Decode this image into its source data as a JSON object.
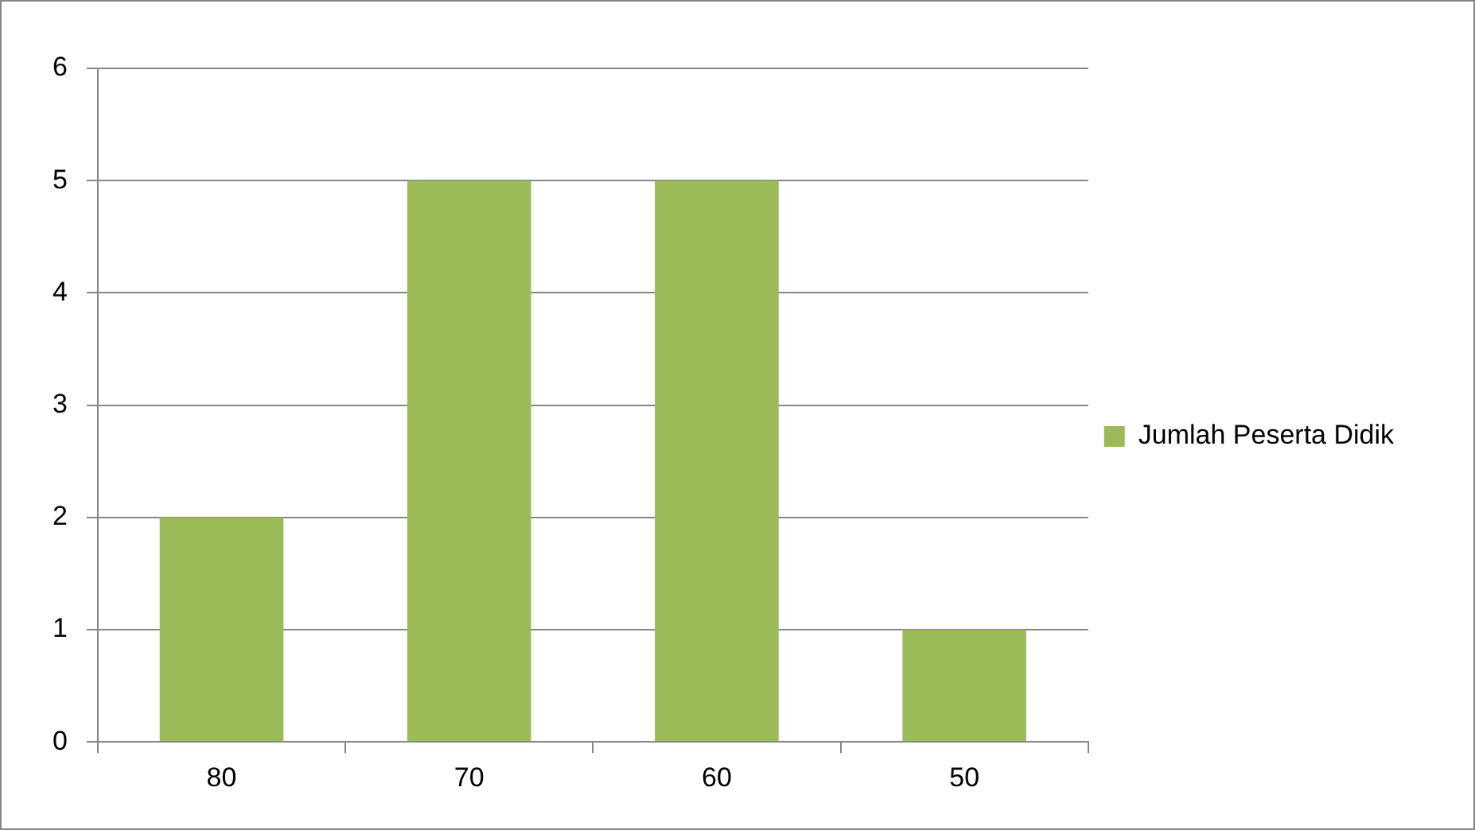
{
  "chart_data": {
    "type": "bar",
    "categories": [
      "80",
      "70",
      "60",
      "50"
    ],
    "series": [
      {
        "name": "Jumlah Peserta Didik",
        "color": "#9bbb59",
        "values": [
          2,
          5,
          5,
          1
        ]
      }
    ],
    "ylim": [
      0,
      6
    ],
    "yticks": [
      0,
      1,
      2,
      3,
      4,
      5,
      6
    ],
    "grid": "y",
    "legend": "right"
  }
}
